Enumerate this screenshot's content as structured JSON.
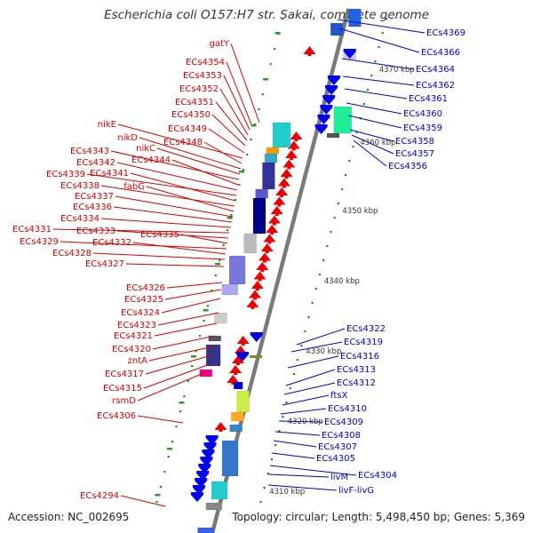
{
  "title": "Escherichia coli O157:H7 str. Sakai, complete genome",
  "footer": {
    "accession": "Accession: NC_002695",
    "summary": "Topology: circular; Length: 5,498,450 bp; Genes: 5,369"
  },
  "colors": {
    "left_label": "#d40000",
    "right_label": "#0000cc",
    "backbone": "#7a7a7a",
    "tick": "#1f8f1f"
  },
  "scale": [
    "4370 kbp",
    "4360 kbp",
    "4350 kbp",
    "4340 kbp",
    "4330 kbp",
    "4320 kbp",
    "4310 kbp"
  ],
  "left_labels": [
    "gatY",
    "ECs4354",
    "ECs4353",
    "ECs4352",
    "ECs4351",
    "ECs4350",
    "ECs4349",
    "nikE",
    "ECs4348",
    "nikD",
    "nikC",
    "ECs4343",
    "ECs4344",
    "ECs4342",
    "ECs4339",
    "ECs4341",
    "ECs4338",
    "fabG",
    "ECs4337",
    "ECs4336",
    "ECs4334",
    "ECs4331",
    "ECs4333",
    "ECs4335",
    "ECs4329",
    "ECs4332",
    "ECs4328",
    "ECs4327",
    "ECs4326",
    "ECs4325",
    "ECs4324",
    "ECs4323",
    "ECs4321",
    "ECs4320",
    "zntA",
    "ECs4317",
    "ECs4315",
    "rsmD",
    "ECs4306",
    "ECs4294"
  ],
  "right_labels": [
    "ECs4369",
    "ECs4366",
    "ECs4364",
    "ECs4362",
    "ECs4361",
    "ECs4360",
    "ECs4359",
    "ECs4358",
    "ECs4357",
    "ECs4356",
    "ECs4322",
    "ECs4319",
    "ECs4316",
    "ECs4313",
    "ECs4312",
    "ftsX",
    "ECs4310",
    "ECs4309",
    "ECs4308",
    "ECs4307",
    "ECs4305",
    "ECs4304",
    "livM",
    "livF-livG"
  ]
}
